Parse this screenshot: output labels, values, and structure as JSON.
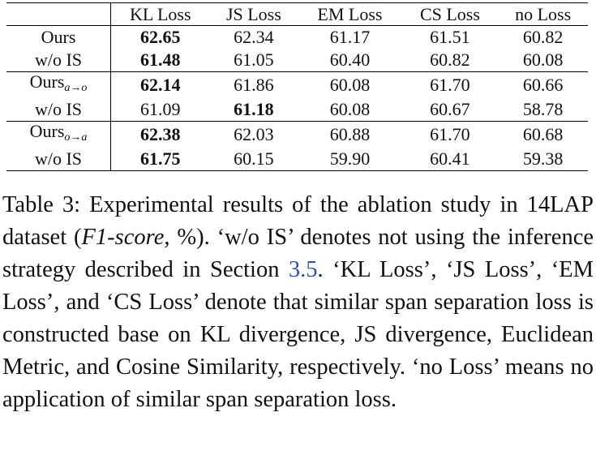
{
  "table": {
    "columns": [
      "KL Loss",
      "JS Loss",
      "EM Loss",
      "CS Loss",
      "no Loss"
    ],
    "groups": [
      [
        {
          "label": "Ours",
          "values": [
            "62.65",
            "62.34",
            "61.17",
            "61.51",
            "60.82"
          ],
          "bold": [
            0
          ]
        },
        {
          "label": "w/o IS",
          "values": [
            "61.48",
            "61.05",
            "60.40",
            "60.82",
            "60.08"
          ],
          "bold": [
            0
          ]
        }
      ],
      [
        {
          "label": "Ours",
          "subscript": "a→o",
          "values": [
            "62.14",
            "61.86",
            "60.08",
            "61.70",
            "60.66"
          ],
          "bold": [
            0
          ]
        },
        {
          "label": "w/o IS",
          "values": [
            "61.09",
            "61.18",
            "60.08",
            "60.67",
            "58.78"
          ],
          "bold": [
            1
          ]
        }
      ],
      [
        {
          "label": "Ours",
          "subscript": "o→a",
          "values": [
            "62.38",
            "62.03",
            "60.88",
            "61.70",
            "60.68"
          ],
          "bold": [
            0
          ]
        },
        {
          "label": "w/o IS",
          "values": [
            "61.75",
            "60.15",
            "59.90",
            "60.41",
            "59.38"
          ],
          "bold": [
            0
          ]
        }
      ]
    ]
  },
  "caption": {
    "parts": [
      {
        "text": "Table 3: Experimental results of the ablation study in 14LAP dataset ("
      },
      {
        "text": "F1-score",
        "style": "italic"
      },
      {
        "text": ", %).  ‘w/o IS’ denotes not using the inference strategy described in Section "
      },
      {
        "text": "3.5",
        "style": "link"
      },
      {
        "text": ". ‘KL Loss’, ‘JS Loss’, ‘EM Loss’, and ‘CS Loss’ denote that similar span separation loss is constructed base on KL divergence, JS divergence, Euclidean Metric, and Cosine Similarity, respectively.  ‘no Loss’ means no application of similar span separation loss."
      }
    ]
  }
}
